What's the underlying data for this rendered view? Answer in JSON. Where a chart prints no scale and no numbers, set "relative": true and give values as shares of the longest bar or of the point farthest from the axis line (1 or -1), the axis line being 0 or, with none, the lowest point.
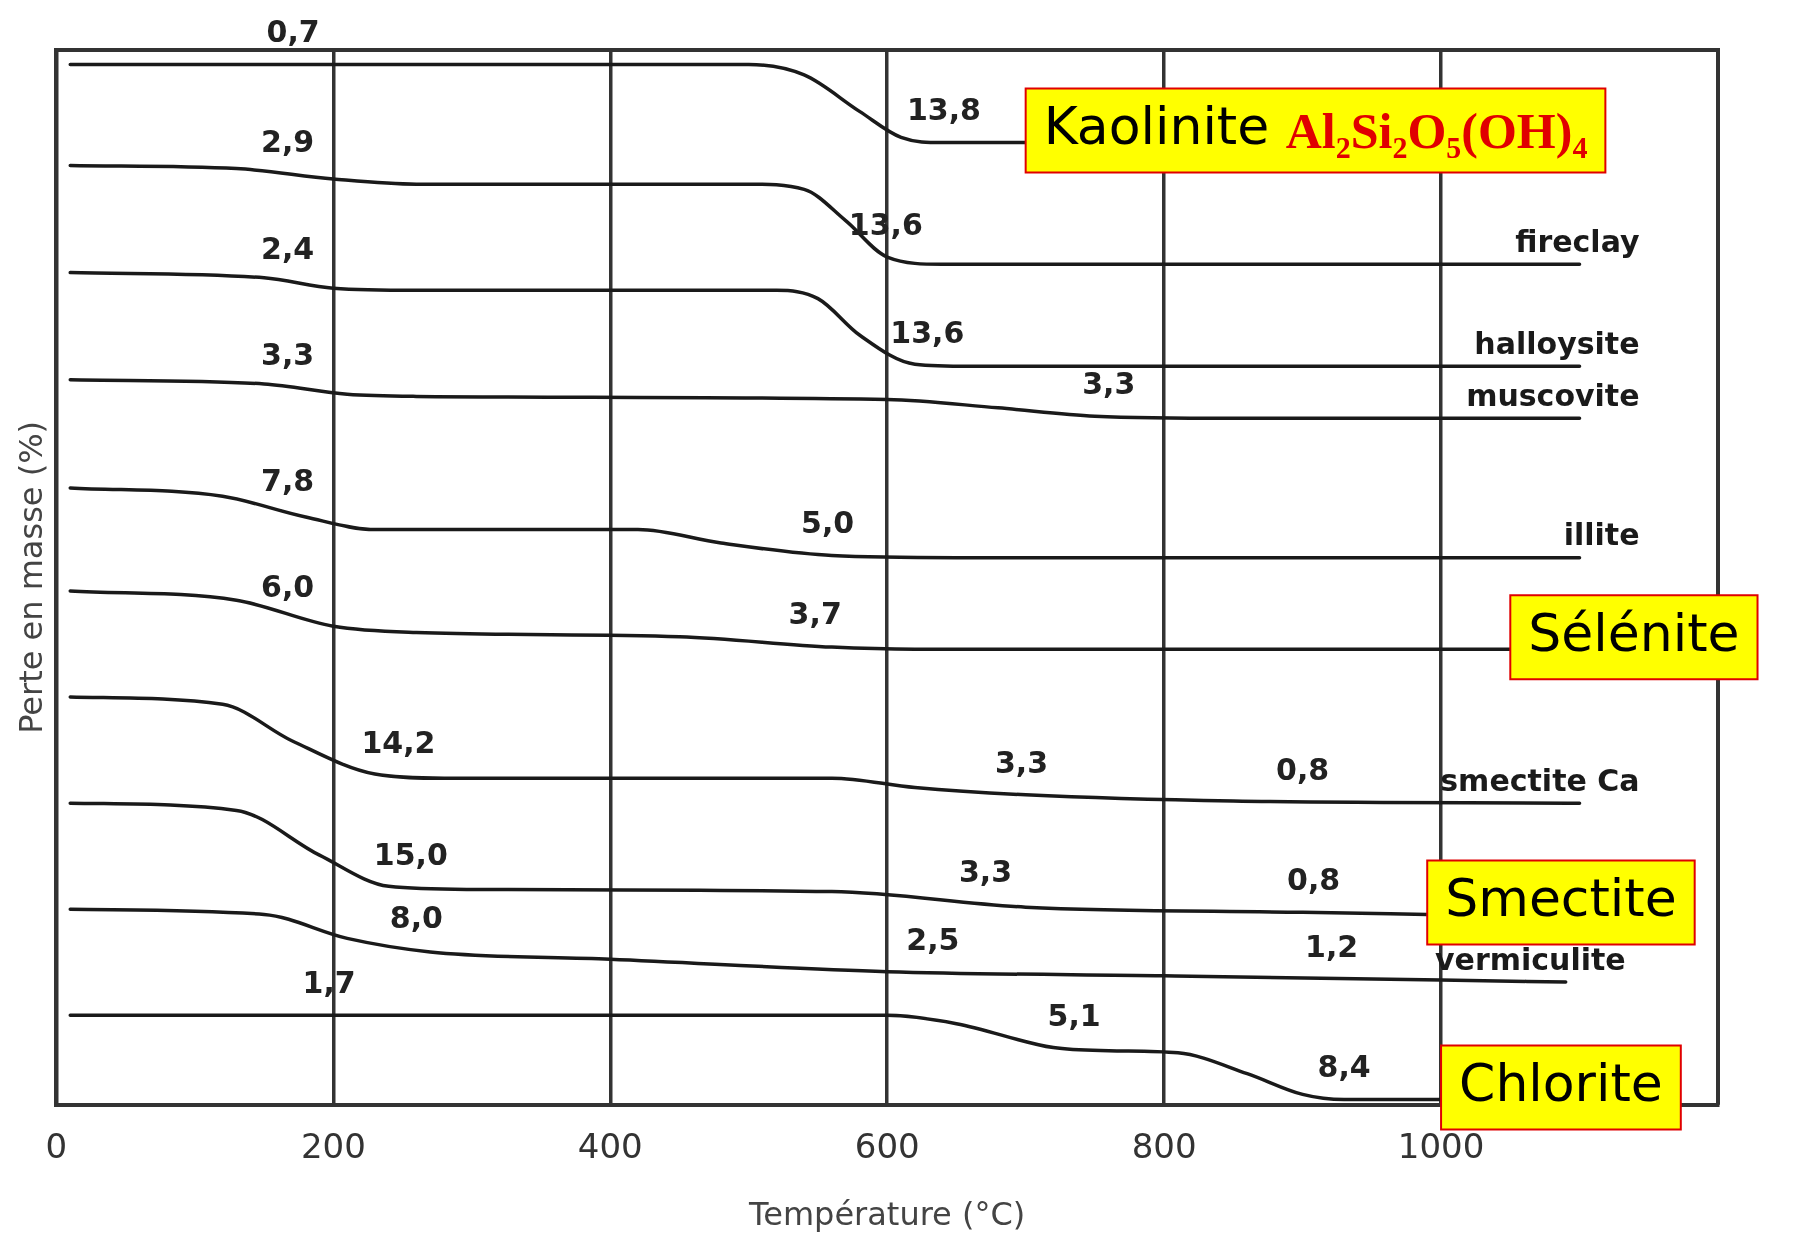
{
  "chart_data": {
    "type": "line",
    "relative": true,
    "xlabel": "Température (°C)",
    "ylabel": "Perte en masse (%)",
    "xlim": [
      0,
      1200
    ],
    "xticks": [
      0,
      200,
      400,
      600,
      800,
      1000
    ],
    "grid": "x",
    "legend": false,
    "marker": "none",
    "line_style": "solid",
    "series": [
      {
        "color": "#1a1a1a",
        "x": [
          10,
          500,
          540,
          580,
          610,
          640,
          700
        ],
        "values": [
          1.0,
          1.0,
          0.99,
          0.955,
          0.93,
          0.925,
          0.925
        ]
      },
      {
        "name": "fireclay",
        "color": "#1a1a1a",
        "x": [
          10,
          130,
          200,
          260,
          500,
          540,
          570,
          600,
          640,
          1100
        ],
        "values": [
          0.903,
          0.9,
          0.89,
          0.885,
          0.885,
          0.88,
          0.85,
          0.815,
          0.808,
          0.808
        ]
      },
      {
        "name": "halloysite",
        "color": "#1a1a1a",
        "x": [
          10,
          150,
          200,
          260,
          520,
          550,
          580,
          620,
          660,
          1100
        ],
        "values": [
          0.8,
          0.795,
          0.785,
          0.783,
          0.783,
          0.775,
          0.74,
          0.712,
          0.71,
          0.71
        ]
      },
      {
        "name": "muscovite",
        "color": "#1a1a1a",
        "x": [
          10,
          150,
          210,
          260,
          600,
          680,
          750,
          850,
          1100
        ],
        "values": [
          0.697,
          0.693,
          0.683,
          0.681,
          0.678,
          0.67,
          0.662,
          0.66,
          0.66
        ]
      },
      {
        "name": "illite",
        "color": "#1a1a1a",
        "x": [
          10,
          120,
          180,
          230,
          420,
          480,
          560,
          650,
          1100
        ],
        "values": [
          0.593,
          0.585,
          0.565,
          0.553,
          0.553,
          0.54,
          0.528,
          0.526,
          0.526
        ]
      },
      {
        "color": "#1a1a1a",
        "x": [
          10,
          130,
          200,
          260,
          450,
          560,
          620,
          1050
        ],
        "values": [
          0.494,
          0.485,
          0.46,
          0.454,
          0.45,
          0.44,
          0.438,
          0.438
        ]
      },
      {
        "name": "smectite Ca",
        "color": "#1a1a1a",
        "x": [
          10,
          120,
          170,
          230,
          280,
          560,
          620,
          700,
          850,
          1100
        ],
        "values": [
          0.392,
          0.385,
          0.35,
          0.318,
          0.314,
          0.314,
          0.305,
          0.298,
          0.292,
          0.29
        ]
      },
      {
        "color": "#1a1a1a",
        "x": [
          10,
          130,
          190,
          240,
          300,
          560,
          700,
          900,
          990
        ],
        "values": [
          0.29,
          0.283,
          0.24,
          0.21,
          0.207,
          0.205,
          0.19,
          0.185,
          0.183
        ]
      },
      {
        "name": "vermiculite",
        "color": "#1a1a1a",
        "x": [
          10,
          150,
          210,
          270,
          400,
          600,
          800,
          1000,
          1090
        ],
        "values": [
          0.188,
          0.183,
          0.16,
          0.147,
          0.14,
          0.128,
          0.124,
          0.12,
          0.118
        ]
      },
      {
        "color": "#1a1a1a",
        "x": [
          10,
          600,
          650,
          720,
          760,
          810,
          860,
          900,
          930,
          1000
        ],
        "values": [
          0.086,
          0.086,
          0.078,
          0.055,
          0.052,
          0.05,
          0.03,
          0.01,
          0.005,
          0.005
        ]
      }
    ],
    "annotations": [
      {
        "text": "0,7",
        "x": 171,
        "y": 1.0
      },
      {
        "text": "13,8",
        "x": 641,
        "y": 0.925
      },
      {
        "text": "2,9",
        "x": 167,
        "y": 0.895
      },
      {
        "text": "13,6",
        "x": 599,
        "y": 0.815
      },
      {
        "text": "2,4",
        "x": 167,
        "y": 0.792
      },
      {
        "text": "13,6",
        "x": 629,
        "y": 0.711
      },
      {
        "text": "3,3",
        "x": 167,
        "y": 0.69
      },
      {
        "text": "3,3",
        "x": 760,
        "y": 0.662
      },
      {
        "text": "7,8",
        "x": 167,
        "y": 0.569
      },
      {
        "text": "5,0",
        "x": 557,
        "y": 0.528
      },
      {
        "text": "6,0",
        "x": 167,
        "y": 0.467
      },
      {
        "text": "3,7",
        "x": 548,
        "y": 0.441
      },
      {
        "text": "14,2",
        "x": 247,
        "y": 0.317
      },
      {
        "text": "3,3",
        "x": 697,
        "y": 0.298
      },
      {
        "text": "0,8",
        "x": 900,
        "y": 0.291
      },
      {
        "text": "15,0",
        "x": 256,
        "y": 0.209
      },
      {
        "text": "3,3",
        "x": 671,
        "y": 0.193
      },
      {
        "text": "0,8",
        "x": 908,
        "y": 0.185
      },
      {
        "text": "8,0",
        "x": 260,
        "y": 0.149
      },
      {
        "text": "2,5",
        "x": 633,
        "y": 0.127
      },
      {
        "text": "1,2",
        "x": 921,
        "y": 0.121
      },
      {
        "text": "1,7",
        "x": 197,
        "y": 0.086
      },
      {
        "text": "5,1",
        "x": 735,
        "y": 0.054
      },
      {
        "text": "8,4",
        "x": 930,
        "y": 0.005
      },
      {
        "text": "Kaolinite Al₂Si₂O₅(OH)₄",
        "x": 700,
        "y": 0.925
      },
      {
        "text": "Sélénite",
        "x": 1050,
        "y": 0.438
      },
      {
        "text": "Smectite",
        "x": 990,
        "y": 0.183
      },
      {
        "text": "Chlorite",
        "x": 1000,
        "y": 0.005
      }
    ]
  }
}
